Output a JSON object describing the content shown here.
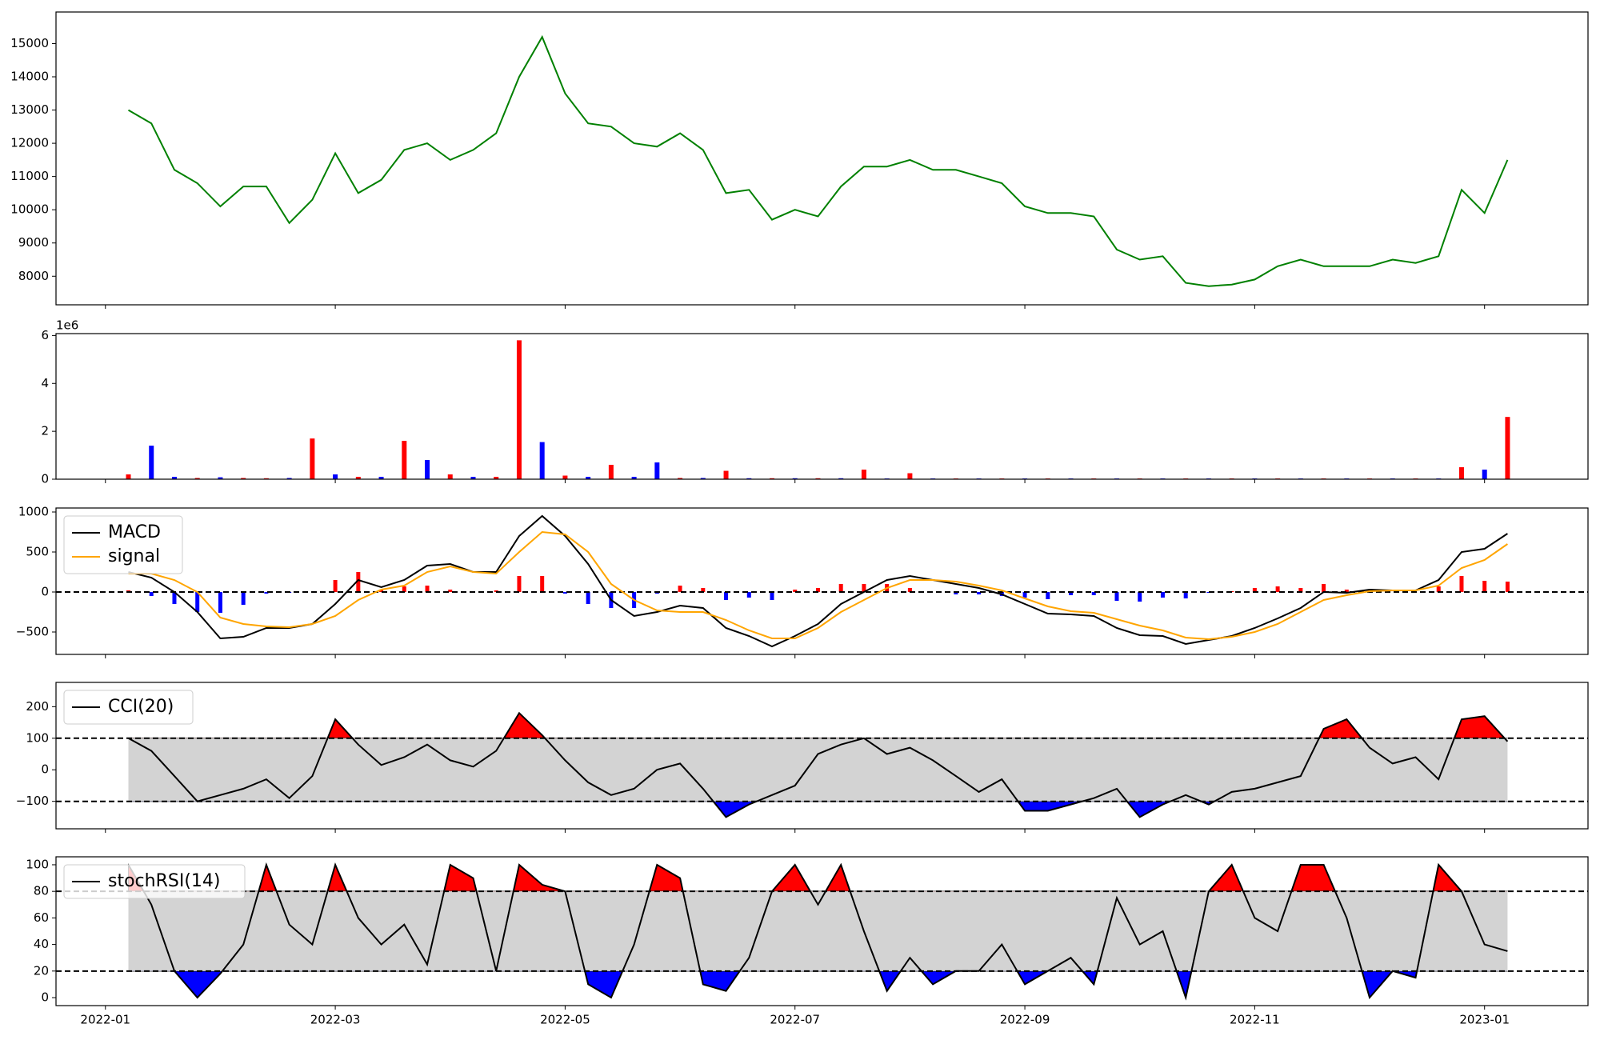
{
  "chart_data": {
    "type": "indicators",
    "x": [
      0.2,
      0.4,
      0.6,
      0.8,
      1.0,
      1.2,
      1.4,
      1.6,
      1.8,
      2.0,
      2.2,
      2.4,
      2.6,
      2.8,
      3.0,
      3.2,
      3.4,
      3.6,
      3.8,
      4.0,
      4.2,
      4.4,
      4.6,
      4.8,
      5.0,
      5.2,
      5.4,
      5.6,
      5.8,
      6.0,
      6.2,
      6.4,
      6.6,
      6.8,
      7.0,
      7.2,
      7.4,
      7.6,
      7.8,
      8.0,
      8.2,
      8.4,
      8.6,
      8.8,
      9.0,
      9.2,
      9.4,
      9.6,
      9.8,
      10.0,
      10.2,
      10.4,
      10.6,
      10.8,
      11.0,
      11.2,
      11.4,
      11.6,
      11.8,
      12.0,
      12.2
    ],
    "xlim": [
      -0.43,
      12.9
    ],
    "xticks": [
      {
        "value": 0,
        "label": "2022-01"
      },
      {
        "value": 2,
        "label": "2022-03"
      },
      {
        "value": 4,
        "label": "2022-05"
      },
      {
        "value": 6,
        "label": "2022-07"
      },
      {
        "value": 8,
        "label": "2022-09"
      },
      {
        "value": 10,
        "label": "2022-11"
      },
      {
        "value": 12,
        "label": "2023-01"
      }
    ],
    "panels": [
      {
        "type": "line",
        "ylim": [
          7140,
          15950
        ],
        "yticks": [
          8000,
          9000,
          10000,
          11000,
          12000,
          13000,
          14000,
          15000
        ],
        "series": [
          {
            "color": "green",
            "values": [
              13000,
              12600,
              11200,
              10800,
              10100,
              10700,
              10700,
              9600,
              10300,
              11700,
              10500,
              10900,
              11800,
              12000,
              11500,
              11800,
              12300,
              14000,
              15200,
              13500,
              12600,
              12500,
              12000,
              11900,
              12300,
              11800,
              10500,
              10600,
              9700,
              10000,
              9800,
              10700,
              11300,
              11300,
              11500,
              11200,
              11200,
              11000,
              10800,
              10100,
              9900,
              9900,
              9800,
              8800,
              8500,
              8600,
              7800,
              7700,
              7750,
              7900,
              8300,
              8500,
              8300,
              8300,
              8300,
              8500,
              8400,
              8600,
              10600,
              9900,
              11500
            ]
          }
        ]
      },
      {
        "type": "bar",
        "ylim": [
          0,
          6.08
        ],
        "yticks": [
          0,
          2,
          4,
          6
        ],
        "offset_label": "1e6",
        "values": [
          0.2,
          1.4,
          0.1,
          0.05,
          0.08,
          0.05,
          0.04,
          0.05,
          1.7,
          0.2,
          0.1,
          0.1,
          1.6,
          0.8,
          0.2,
          0.1,
          0.1,
          5.8,
          1.55,
          0.15,
          0.1,
          0.6,
          0.1,
          0.7,
          0.05,
          0.05,
          0.35,
          0.04,
          0.04,
          0.04,
          0.04,
          0.04,
          0.4,
          0.03,
          0.25,
          0.03,
          0.03,
          0.03,
          0.03,
          0.03,
          0.03,
          0.03,
          0.03,
          0.03,
          0.03,
          0.03,
          0.03,
          0.03,
          0.03,
          0.03,
          0.03,
          0.03,
          0.03,
          0.03,
          0.03,
          0.03,
          0.03,
          0.03,
          0.5,
          0.4,
          2.6
        ],
        "colors": [
          "red",
          "blue",
          "blue",
          "red",
          "blue",
          "red",
          "red",
          "blue",
          "red",
          "blue",
          "red",
          "blue",
          "red",
          "blue",
          "red",
          "blue",
          "red",
          "red",
          "blue",
          "red",
          "blue",
          "red",
          "blue",
          "blue",
          "red",
          "blue",
          "red",
          "blue",
          "red",
          "blue",
          "red",
          "blue",
          "red",
          "blue",
          "red",
          "blue",
          "red",
          "blue",
          "red",
          "blue",
          "red",
          "blue",
          "red",
          "blue",
          "red",
          "blue",
          "red",
          "blue",
          "red",
          "blue",
          "red",
          "blue",
          "red",
          "blue",
          "red",
          "blue",
          "red",
          "blue",
          "red",
          "blue",
          "red"
        ]
      },
      {
        "type": "macd",
        "ylim": [
          -780,
          1050
        ],
        "yticks": [
          {
            "value": -500,
            "label": "−500"
          },
          0,
          500,
          1000
        ],
        "hlines": [
          0
        ],
        "legend": "upper left",
        "series": [
          {
            "name": "MACD",
            "color": "black",
            "values": [
              250,
              180,
              0,
              -250,
              -580,
              -560,
              -450,
              -450,
              -400,
              -150,
              150,
              60,
              150,
              330,
              350,
              250,
              250,
              700,
              950,
              700,
              350,
              -100,
              -300,
              -250,
              -170,
              -200,
              -450,
              -550,
              -680,
              -550,
              -400,
              -150,
              0,
              150,
              200,
              150,
              100,
              50,
              -30,
              -150,
              -270,
              -280,
              -300,
              -450,
              -540,
              -550,
              -650,
              -600,
              -550,
              -450,
              -330,
              -200,
              0,
              -10,
              30,
              20,
              20,
              150,
              500,
              540,
              730
            ]
          },
          {
            "name": "signal",
            "color": "orange",
            "values": [
              230,
              230,
              150,
              0,
              -320,
              -400,
              -430,
              -440,
              -400,
              -300,
              -100,
              30,
              80,
              250,
              320,
              250,
              230,
              500,
              750,
              720,
              500,
              100,
              -100,
              -230,
              -250,
              -250,
              -350,
              -480,
              -580,
              -580,
              -450,
              -250,
              -100,
              50,
              150,
              150,
              130,
              80,
              20,
              -80,
              -180,
              -240,
              -260,
              -340,
              -420,
              -480,
              -570,
              -590,
              -560,
              -500,
              -400,
              -250,
              -100,
              -40,
              10,
              20,
              20,
              80,
              300,
              400,
              600
            ]
          }
        ],
        "histogram": {
          "positive_color": "red",
          "negative_color": "blue",
          "values": [
            20,
            -50,
            -150,
            -250,
            -260,
            -160,
            -20,
            -10,
            0,
            150,
            250,
            30,
            70,
            80,
            30,
            0,
            20,
            200,
            200,
            -20,
            -150,
            -200,
            -200,
            -20,
            80,
            50,
            -100,
            -70,
            -100,
            30,
            50,
            100,
            100,
            100,
            50,
            0,
            -30,
            -30,
            -50,
            -70,
            -90,
            -40,
            -40,
            -110,
            -120,
            -70,
            -80,
            -10,
            10,
            50,
            70,
            50,
            100,
            30,
            20,
            0,
            0,
            70,
            200,
            140,
            130
          ]
        }
      },
      {
        "type": "band",
        "ylim": [
          -187,
          277
        ],
        "yticks": [
          {
            "value": -100,
            "label": "−100"
          },
          0,
          100,
          200
        ],
        "bands": [
          -100,
          100
        ],
        "legend": "upper left",
        "band_color": "lightgray",
        "above_color": "red",
        "below_color": "blue",
        "series": [
          {
            "name": "CCI(20)",
            "color": "black",
            "values": [
              100,
              60,
              -20,
              -100,
              -80,
              -60,
              -30,
              -90,
              -20,
              160,
              80,
              15,
              40,
              80,
              30,
              10,
              60,
              180,
              110,
              30,
              -40,
              -80,
              -60,
              0,
              20,
              -60,
              -150,
              -110,
              -80,
              -50,
              50,
              80,
              100,
              50,
              70,
              30,
              -20,
              -70,
              -30,
              -130,
              -130,
              -110,
              -90,
              -60,
              -150,
              -110,
              -80,
              -110,
              -70,
              -60,
              -40,
              -20,
              130,
              160,
              70,
              20,
              40,
              -30,
              160,
              170,
              90
            ]
          }
        ]
      },
      {
        "type": "band",
        "ylim": [
          -6,
          106
        ],
        "yticks": [
          0,
          20,
          40,
          60,
          80,
          100
        ],
        "bands": [
          20,
          80
        ],
        "legend": "upper left",
        "band_color": "lightgray",
        "above_color": "red",
        "below_color": "blue",
        "series": [
          {
            "name": "stochRSI(14)",
            "color": "black",
            "values": [
              100,
              70,
              20,
              0,
              18,
              40,
              100,
              55,
              40,
              100,
              60,
              40,
              55,
              25,
              100,
              90,
              20,
              100,
              85,
              80,
              10,
              0,
              40,
              100,
              90,
              10,
              5,
              30,
              80,
              100,
              70,
              100,
              50,
              5,
              30,
              10,
              20,
              20,
              40,
              10,
              20,
              30,
              10,
              75,
              40,
              50,
              0,
              80,
              100,
              60,
              50,
              100,
              100,
              60,
              0,
              20,
              15,
              100,
              80,
              40,
              35
            ]
          }
        ]
      }
    ]
  }
}
